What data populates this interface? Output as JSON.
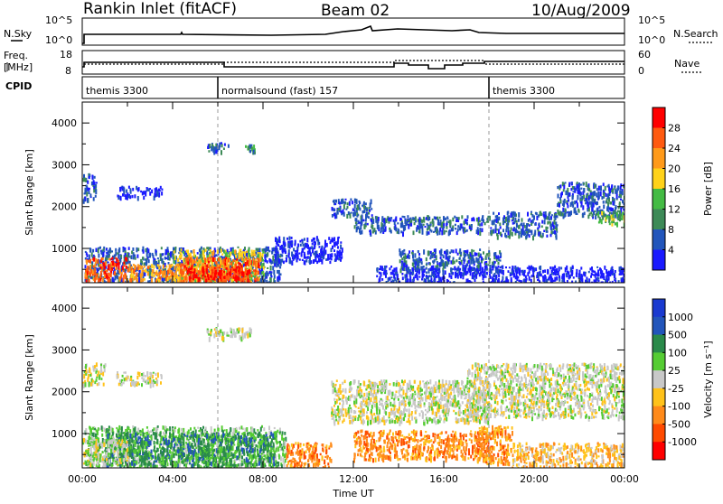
{
  "header": {
    "station": "Rankin Inlet (fitACF)",
    "beam": "Beam 02",
    "date": "10/Aug/2009"
  },
  "strips": {
    "nsky_label": "N.Sky",
    "nsearch_label": "N.Search",
    "nsky_ticks": [
      "10^5",
      "10^0"
    ],
    "nsearch_ticks": [
      "10^5",
      "10^0"
    ],
    "freq_label_1": "Freq.",
    "freq_label_2": "[MHz]",
    "freq_ticks": [
      "18",
      "8"
    ],
    "nave_label": "Nave",
    "nave_ticks": [
      "60",
      "0"
    ],
    "cpid_label": "CPID"
  },
  "cpid_segments": [
    {
      "label": "themis 3300",
      "start_hour": 0
    },
    {
      "label": "normalsound (fast) 157",
      "start_hour": 6
    },
    {
      "label": "themis 3300",
      "start_hour": 18
    }
  ],
  "colors": {
    "power": [
      "#1a1aff",
      "#2255bb",
      "#3d8a57",
      "#44bb44",
      "#ffd21a",
      "#ff9a1a",
      "#ff5a10",
      "#ff0000"
    ],
    "velocity": [
      "#ff0000",
      "#ff4a00",
      "#ff8a1a",
      "#ffc21a",
      "#c8c8c8",
      "#55cc33",
      "#2a8a4a",
      "#2255bb",
      "#1a3ad0"
    ]
  },
  "chart_data": [
    {
      "type": "heatmap",
      "name": "power",
      "title": "",
      "ylabel": "Slant Range [km]",
      "xlabel": "",
      "x_unit": "hours UT",
      "xlim": [
        0,
        24
      ],
      "ylim": [
        180,
        4500
      ],
      "y_ticks": [
        1000,
        2000,
        3000,
        4000
      ],
      "dashed_x": [
        6,
        18
      ],
      "colorbar": {
        "label": "Power [dB]",
        "ticks": [
          "4",
          "8",
          "12",
          "16",
          "20",
          "24",
          "28"
        ],
        "range": [
          0,
          30
        ]
      },
      "regions": [
        {
          "t0": 0.1,
          "t1": 8.8,
          "r0": 200,
          "r1": 1050,
          "level": 1
        },
        {
          "t0": 0.1,
          "t1": 2.0,
          "r0": 250,
          "r1": 800,
          "level": 6
        },
        {
          "t0": 2.0,
          "t1": 6.5,
          "r0": 250,
          "r1": 650,
          "level": 5
        },
        {
          "t0": 4.0,
          "t1": 8.0,
          "r0": 250,
          "r1": 1000,
          "level": 4
        },
        {
          "t0": 4.3,
          "t1": 7.8,
          "r0": 250,
          "r1": 800,
          "level": 6
        },
        {
          "t0": 4.6,
          "t1": 7.4,
          "r0": 250,
          "r1": 550,
          "level": 7
        },
        {
          "t0": 0.0,
          "t1": 0.6,
          "r0": 2150,
          "r1": 2800,
          "level": 1
        },
        {
          "t0": 1.5,
          "t1": 3.5,
          "r0": 2250,
          "r1": 2500,
          "level": 0
        },
        {
          "t0": 5.5,
          "t1": 6.5,
          "r0": 3350,
          "r1": 3550,
          "level": 1
        },
        {
          "t0": 7.2,
          "t1": 7.6,
          "r0": 3300,
          "r1": 3500,
          "level": 2
        },
        {
          "t0": 8.5,
          "t1": 11.5,
          "r0": 700,
          "r1": 1300,
          "level": 0
        },
        {
          "t0": 11.0,
          "t1": 12.8,
          "r0": 1800,
          "r1": 2200,
          "level": 1
        },
        {
          "t0": 12.0,
          "t1": 18.0,
          "r0": 1400,
          "r1": 1800,
          "level": 1
        },
        {
          "t0": 14.0,
          "t1": 18.5,
          "r0": 500,
          "r1": 1000,
          "level": 1
        },
        {
          "t0": 18.0,
          "t1": 21.0,
          "r0": 1300,
          "r1": 1900,
          "level": 1
        },
        {
          "t0": 21.0,
          "t1": 24.0,
          "r0": 1800,
          "r1": 2600,
          "level": 1
        },
        {
          "t0": 22.8,
          "t1": 24.0,
          "r0": 1600,
          "r1": 1900,
          "level": 3
        },
        {
          "t0": 13.0,
          "t1": 24.0,
          "r0": 200,
          "r1": 600,
          "level": 0
        }
      ]
    },
    {
      "type": "heatmap",
      "name": "velocity",
      "title": "",
      "ylabel": "Slant Range [km]",
      "xlabel": "Time UT",
      "x_unit": "hours UT",
      "xlim": [
        0,
        24
      ],
      "ylim": [
        180,
        4500
      ],
      "y_ticks": [
        1000,
        2000,
        3000,
        4000
      ],
      "x_ticks": [
        "00:00",
        "04:00",
        "08:00",
        "12:00",
        "16:00",
        "20:00",
        "00:00"
      ],
      "dashed_x": [
        6,
        18
      ],
      "colorbar": {
        "label": "Velocity [m s⁻¹]",
        "ticks": [
          "1000",
          "500",
          "100",
          "25",
          "-25",
          "-100",
          "-500",
          "-1000"
        ]
      },
      "regions": [
        {
          "t0": 0.1,
          "t1": 9.0,
          "r0": 200,
          "r1": 1200,
          "level": 5
        },
        {
          "t0": 1.0,
          "t1": 8.5,
          "r0": 250,
          "r1": 1050,
          "level": 6
        },
        {
          "t0": 0.0,
          "t1": 2.0,
          "r0": 300,
          "r1": 900,
          "level": 4
        },
        {
          "t0": 0.0,
          "t1": 1.0,
          "r0": 2200,
          "r1": 2700,
          "level": 4
        },
        {
          "t0": 1.5,
          "t1": 3.5,
          "r0": 2200,
          "r1": 2500,
          "level": 4
        },
        {
          "t0": 5.5,
          "t1": 7.5,
          "r0": 3300,
          "r1": 3550,
          "level": 4
        },
        {
          "t0": 9.0,
          "t1": 11.0,
          "r0": 200,
          "r1": 800,
          "level": 2
        },
        {
          "t0": 11.0,
          "t1": 18.0,
          "r0": 1300,
          "r1": 2300,
          "level": 4
        },
        {
          "t0": 12.0,
          "t1": 18.0,
          "r0": 400,
          "r1": 1100,
          "level": 2
        },
        {
          "t0": 17.0,
          "t1": 24.0,
          "r0": 1400,
          "r1": 2700,
          "level": 4
        },
        {
          "t0": 17.5,
          "t1": 19.0,
          "r0": 300,
          "r1": 1200,
          "level": 2
        },
        {
          "t0": 19.0,
          "t1": 24.0,
          "r0": 200,
          "r1": 800,
          "level": 3
        }
      ]
    }
  ]
}
